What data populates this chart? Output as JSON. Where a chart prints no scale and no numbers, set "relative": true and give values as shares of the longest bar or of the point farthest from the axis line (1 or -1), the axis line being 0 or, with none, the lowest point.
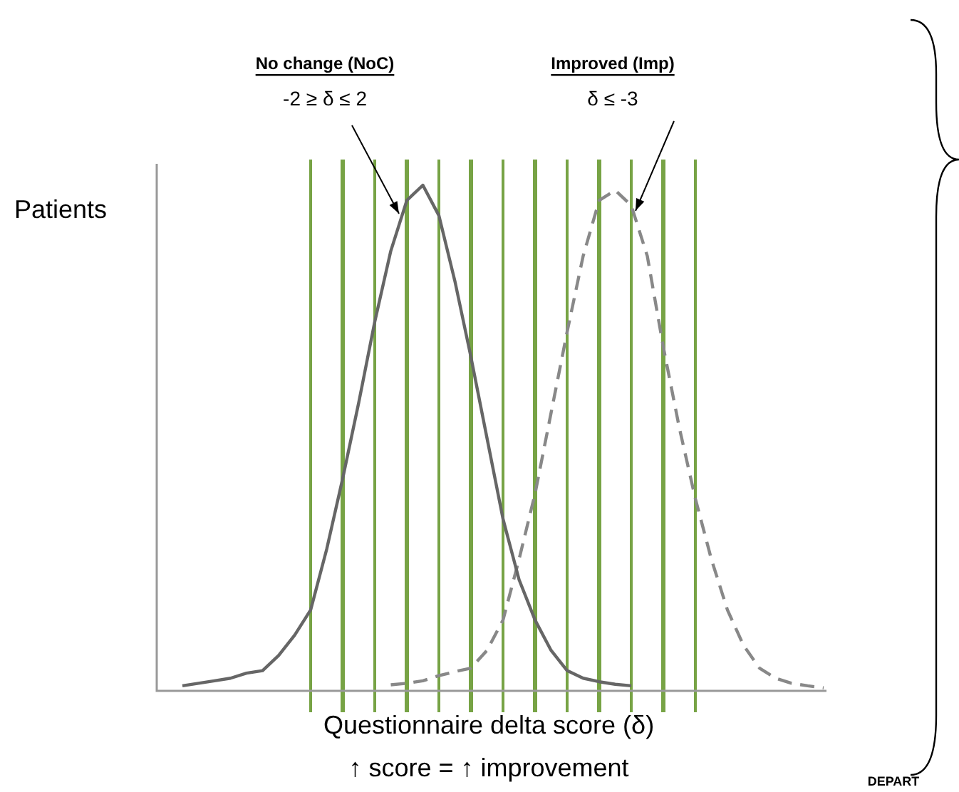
{
  "chart_data": {
    "type": "line",
    "relative": true,
    "ylabel": "Patients",
    "xlabel": "Questionnaire delta score (δ)\n↑ score = ↑ improvement",
    "legend": false,
    "marker": "none",
    "categories": [
      null,
      null,
      null,
      null,
      null,
      null,
      null,
      null,
      null,
      null,
      null,
      null,
      null,
      null,
      null,
      null,
      null,
      null,
      null,
      null,
      null,
      null,
      null,
      null,
      null,
      null,
      null,
      null,
      null,
      null,
      null,
      null,
      null,
      null,
      null,
      null,
      null,
      null,
      null,
      null,
      null
    ],
    "series": [
      {
        "color": "#666666",
        "line_style": "solid",
        "values": [
          0.01,
          0.015,
          0.02,
          0.025,
          0.035,
          0.04,
          0.07,
          0.11,
          0.16,
          0.28,
          0.42,
          0.57,
          0.73,
          0.87,
          0.97,
          1,
          0.94,
          0.81,
          0.66,
          0.5,
          0.34,
          0.22,
          0.14,
          0.08,
          0.04,
          0.025,
          0.018,
          0.013,
          0.01,
          null,
          null,
          null,
          null,
          null,
          null,
          null,
          null,
          null,
          null,
          null,
          null
        ]
      },
      {
        "color": "#888888",
        "line_style": "dashed",
        "values": [
          null,
          null,
          null,
          null,
          null,
          null,
          null,
          null,
          null,
          null,
          null,
          null,
          null,
          0.012,
          0.015,
          0.02,
          0.03,
          0.038,
          0.045,
          0.08,
          0.14,
          0.26,
          0.39,
          0.55,
          0.71,
          0.86,
          0.97,
          0.99,
          0.96,
          0.86,
          0.68,
          0.52,
          0.38,
          0.26,
          0.16,
          0.09,
          0.045,
          0.025,
          0.015,
          0.01,
          0.006
        ]
      }
    ],
    "annotations": [
      "No change (NoC)",
      "-2 ≥ δ ≤ 2",
      "Improved (Imp)",
      "δ ≤ -3",
      "DEPART"
    ]
  }
}
